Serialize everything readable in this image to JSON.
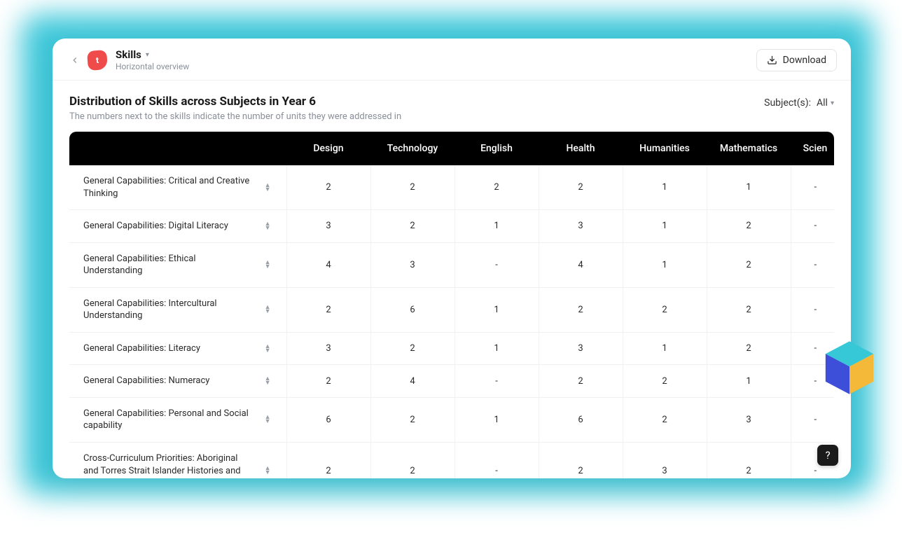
{
  "header": {
    "title": "Skills",
    "subtitle": "Horizontal overview",
    "download_label": "Download"
  },
  "page": {
    "heading": "Distribution of Skills across Subjects in Year 6",
    "description": "The numbers next to the skills indicate the number of units they were addressed in",
    "filter_label": "Subject(s):",
    "filter_value": "All"
  },
  "table": {
    "columns": [
      "Design",
      "Technology",
      "English",
      "Health",
      "Humanities",
      "Mathematics",
      "Scien"
    ],
    "rows": [
      {
        "label": "General Capabilities: Critical and Creative Thinking",
        "values": [
          "2",
          "2",
          "2",
          "2",
          "1",
          "1",
          "-"
        ]
      },
      {
        "label": "General Capabilities: Digital Literacy",
        "values": [
          "3",
          "2",
          "1",
          "3",
          "1",
          "2",
          "-"
        ]
      },
      {
        "label": "General Capabilities: Ethical Understanding",
        "values": [
          "4",
          "3",
          "-",
          "4",
          "1",
          "2",
          "-"
        ]
      },
      {
        "label": "General Capabilities: Intercultural Understanding",
        "values": [
          "2",
          "6",
          "1",
          "2",
          "2",
          "2",
          "-"
        ]
      },
      {
        "label": "General Capabilities: Literacy",
        "values": [
          "3",
          "2",
          "1",
          "3",
          "1",
          "2",
          "-"
        ]
      },
      {
        "label": "General Capabilities: Numeracy",
        "values": [
          "2",
          "4",
          "-",
          "2",
          "2",
          "1",
          "-"
        ]
      },
      {
        "label": "General Capabilities: Personal and Social capability",
        "values": [
          "6",
          "2",
          "1",
          "6",
          "2",
          "3",
          "-"
        ]
      },
      {
        "label": "Cross-Curriculum Priorities: Aboriginal and Torres Strait Islander Histories and Cultures",
        "values": [
          "2",
          "2",
          "-",
          "2",
          "3",
          "2",
          "-"
        ]
      }
    ]
  },
  "help": {
    "label": "?"
  },
  "cube_colors": {
    "top": "#36c8d6",
    "left": "#3d4fd8",
    "right": "#f5b93a"
  }
}
